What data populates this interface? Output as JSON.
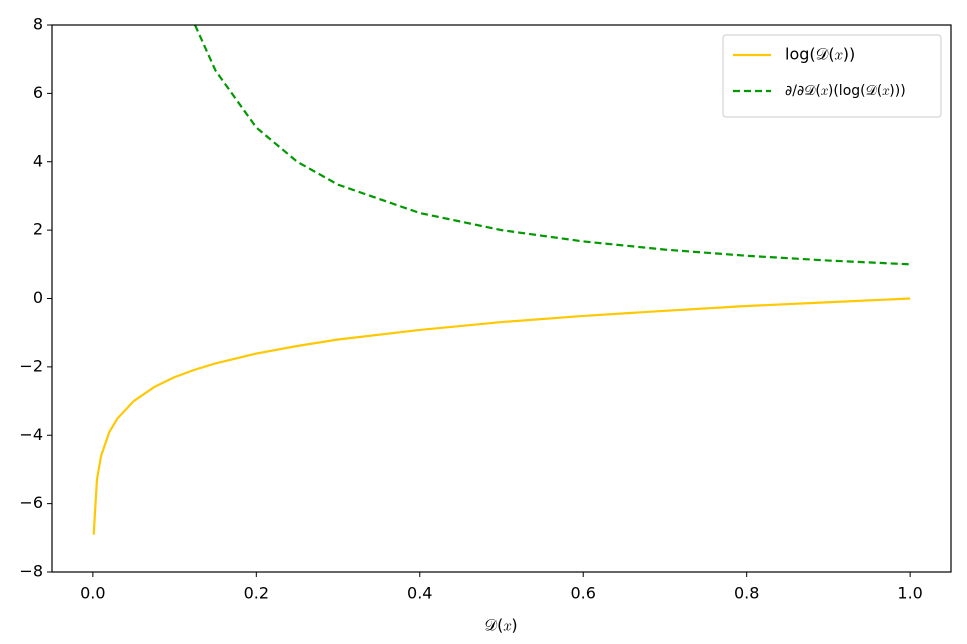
{
  "chart_data": {
    "type": "line",
    "x_label": "𝒟(𝑥)",
    "x": [
      0.001,
      0.005,
      0.01,
      0.02,
      0.03,
      0.05,
      0.075,
      0.1,
      0.125,
      0.15,
      0.2,
      0.25,
      0.3,
      0.4,
      0.5,
      0.6,
      0.7,
      0.8,
      0.9,
      1.0
    ],
    "series": [
      {
        "name": "log(𝒟(𝑥))",
        "color": "#ffc800",
        "dash": false,
        "values": [
          -6.91,
          -5.3,
          -4.61,
          -3.91,
          -3.51,
          -3.0,
          -2.59,
          -2.3,
          -2.08,
          -1.9,
          -1.61,
          -1.39,
          -1.2,
          -0.92,
          -0.69,
          -0.51,
          -0.36,
          -0.22,
          -0.11,
          0
        ]
      },
      {
        "name": "∂/∂𝒟(𝑥)(log(𝒟(𝑥)))",
        "color": "#009900",
        "dash": true,
        "values": [
          null,
          null,
          null,
          null,
          null,
          null,
          null,
          null,
          8,
          6.67,
          5,
          4,
          3.33,
          2.5,
          2,
          1.67,
          1.43,
          1.25,
          1.11,
          1
        ]
      }
    ],
    "xlim": [
      -0.05,
      1.05
    ],
    "ylim": [
      -8,
      8
    ],
    "xticks": [
      {
        "value": 0,
        "label": "0.0"
      },
      0.2,
      0.4,
      0.6,
      0.8,
      {
        "value": 1,
        "label": "1.0"
      }
    ],
    "yticks": [
      {
        "value": -8,
        "label": "−8"
      },
      {
        "value": -6,
        "label": "−6"
      },
      {
        "value": -4,
        "label": "−4"
      },
      {
        "value": -2,
        "label": "−2"
      },
      0,
      2,
      4,
      6,
      8
    ],
    "grid": false,
    "legend": "upper right"
  }
}
